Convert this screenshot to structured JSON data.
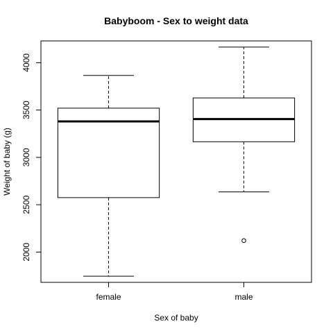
{
  "chart_data": {
    "type": "boxplot",
    "title": "Babyboom - Sex to weight data",
    "xlabel": "Sex of baby",
    "ylabel": "Weight of baby (g)",
    "ylim": [
      1680,
      4230
    ],
    "yticks": [
      2000,
      2500,
      3000,
      3500,
      4000
    ],
    "yticklabels": [
      "2000",
      "2500",
      "3000",
      "3500",
      "4000"
    ],
    "categories": [
      "female",
      "male"
    ],
    "boxes": [
      {
        "category": "female",
        "whisker_low": 1745,
        "q1": 2575,
        "median": 3380,
        "q3": 3520,
        "whisker_high": 3865,
        "outliers": []
      },
      {
        "category": "male",
        "whisker_low": 2635,
        "q1": 3165,
        "median": 3405,
        "q3": 3628,
        "whisker_high": 4165,
        "outliers": [
          2121
        ]
      }
    ],
    "grid": false
  }
}
